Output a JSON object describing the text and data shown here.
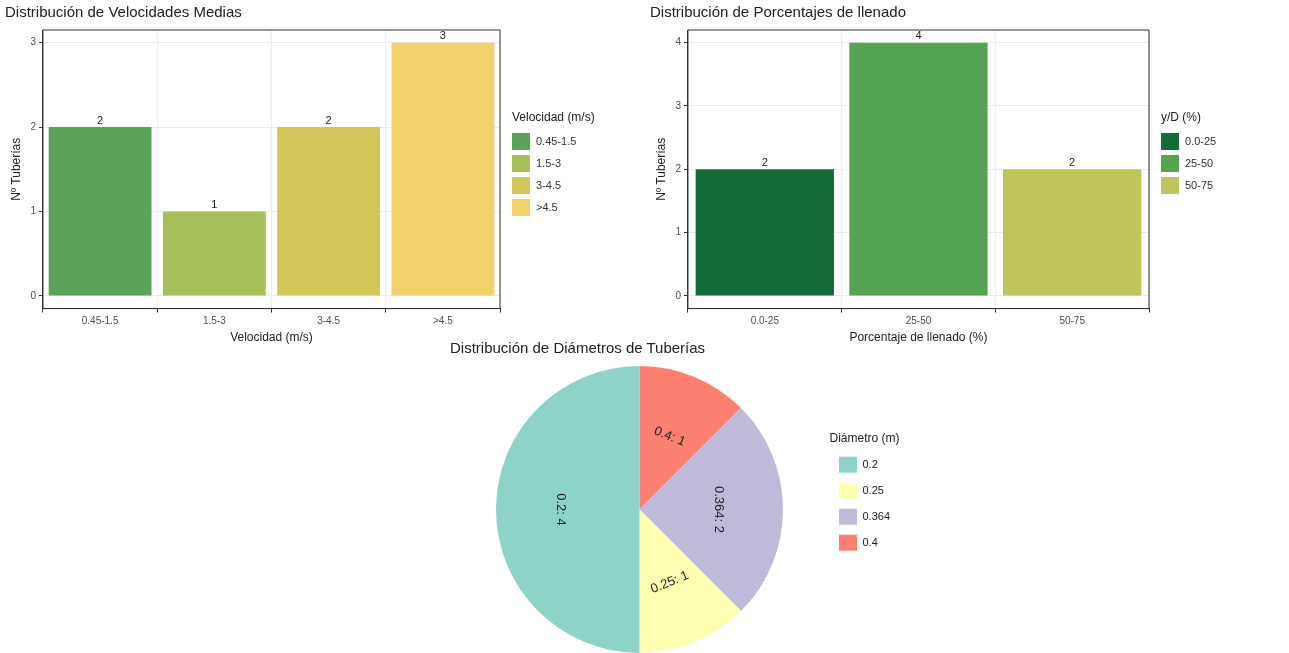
{
  "chart_data": [
    {
      "type": "bar",
      "title": "Distribución de Velocidades Medias",
      "xlabel": "Velocidad (m/s)",
      "ylabel": "Nº Tuberías",
      "legend_title": "Velocidad (m/s)",
      "grid": true,
      "data_labels": true,
      "categories": [
        "0.45-1.5",
        "1.5-3",
        "3-4.5",
        ">4.5"
      ],
      "values": [
        2,
        1,
        2,
        3
      ],
      "colors": [
        "#5ba35a",
        "#a8c05a",
        "#d4c75a",
        "#f2d36b"
      ],
      "ylim": [
        -0.15,
        3.15
      ],
      "yticks": [
        0,
        1,
        2,
        3
      ]
    },
    {
      "type": "bar",
      "title": "Distribución de Porcentajes de llenado",
      "xlabel": "Porcentaje de llenado (%)",
      "ylabel": "Nº Tuberías",
      "legend_title": "y/D (%)",
      "grid": true,
      "data_labels": true,
      "categories": [
        "0.0-25",
        "25-50",
        "50-75"
      ],
      "values": [
        2,
        4,
        2
      ],
      "colors": [
        "#136b38",
        "#55a451",
        "#bfc55c"
      ],
      "ylim": [
        -0.2,
        4.2
      ],
      "yticks": [
        0,
        1,
        2,
        3,
        4
      ]
    },
    {
      "type": "pie",
      "title": "Distribución de Diámetros de Tuberías",
      "legend_title": "Diámetro (m)",
      "legend": "right",
      "categories": [
        "0.2",
        "0.25",
        "0.364",
        "0.4"
      ],
      "values": [
        4,
        1,
        2,
        1
      ],
      "colors": [
        "#8dd3c7",
        "#ffffb3",
        "#bebada",
        "#fb8072"
      ],
      "value_labels": [
        "0.2: 4",
        "0.25: 1",
        "0.364: 2",
        "0.4: 1"
      ]
    }
  ]
}
